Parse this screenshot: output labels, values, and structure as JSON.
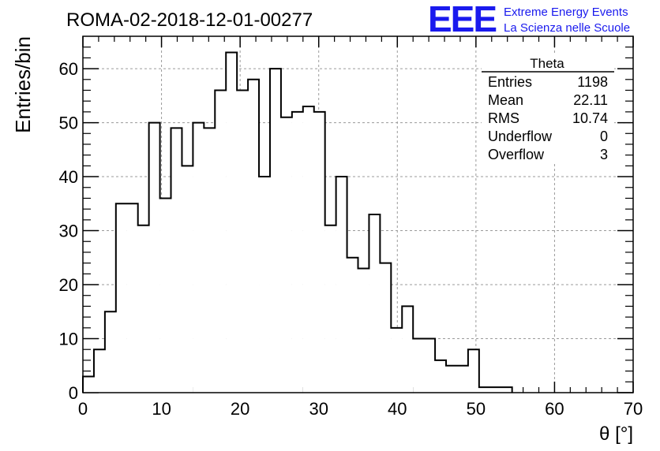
{
  "header": {
    "run_title": "ROMA-02-2018-12-01-00277",
    "logo_text": "EEE",
    "logo_line1": "Extreme Energy Events",
    "logo_line2": "La Scienza nelle Scuole"
  },
  "stats": {
    "title": "Theta",
    "rows": [
      {
        "label": "Entries",
        "value": "1198"
      },
      {
        "label": "Mean",
        "value": "22.11"
      },
      {
        "label": "RMS",
        "value": "10.74"
      },
      {
        "label": "Underflow",
        "value": "0"
      },
      {
        "label": "Overflow",
        "value": "3"
      }
    ]
  },
  "colors": {
    "logo": "#1a1aee",
    "histogram": "#000000",
    "grid": "#9a9a9a"
  },
  "chart_data": {
    "type": "histogram",
    "title": "ROMA-02-2018-12-01-00277",
    "xlabel": "θ [°]",
    "ylabel": "Entries/bin",
    "xlim": [
      0,
      70
    ],
    "ylim": [
      0,
      66
    ],
    "bin_width": 1.4,
    "grid": true,
    "x_ticks": [
      0,
      10,
      20,
      30,
      40,
      50,
      60,
      70
    ],
    "y_ticks": [
      0,
      10,
      20,
      30,
      40,
      50,
      60
    ],
    "x_tick_labels": [
      "0",
      "10",
      "20",
      "30",
      "40",
      "50",
      "60",
      "70"
    ],
    "y_tick_labels": [
      "0",
      "10",
      "20",
      "30",
      "40",
      "50",
      "60"
    ],
    "bin_edges": [
      0,
      1.4,
      2.8,
      4.2,
      5.6,
      7.0,
      8.4,
      9.8,
      11.2,
      12.6,
      14.0,
      15.4,
      16.8,
      18.2,
      19.6,
      21.0,
      22.4,
      23.8,
      25.2,
      26.6,
      28.0,
      29.4,
      30.8,
      32.2,
      33.6,
      35.0,
      36.4,
      37.8,
      39.2,
      40.6,
      42.0,
      43.4,
      44.8,
      46.2,
      47.6,
      49.0,
      50.4,
      51.8,
      53.2,
      54.6
    ],
    "counts": [
      3,
      8,
      15,
      35,
      35,
      31,
      50,
      36,
      49,
      42,
      50,
      49,
      56,
      63,
      56,
      58,
      40,
      60,
      51,
      52,
      53,
      52,
      31,
      40,
      25,
      23,
      33,
      24,
      12,
      16,
      10,
      10,
      6,
      5,
      5,
      8,
      1,
      1,
      1
    ]
  }
}
